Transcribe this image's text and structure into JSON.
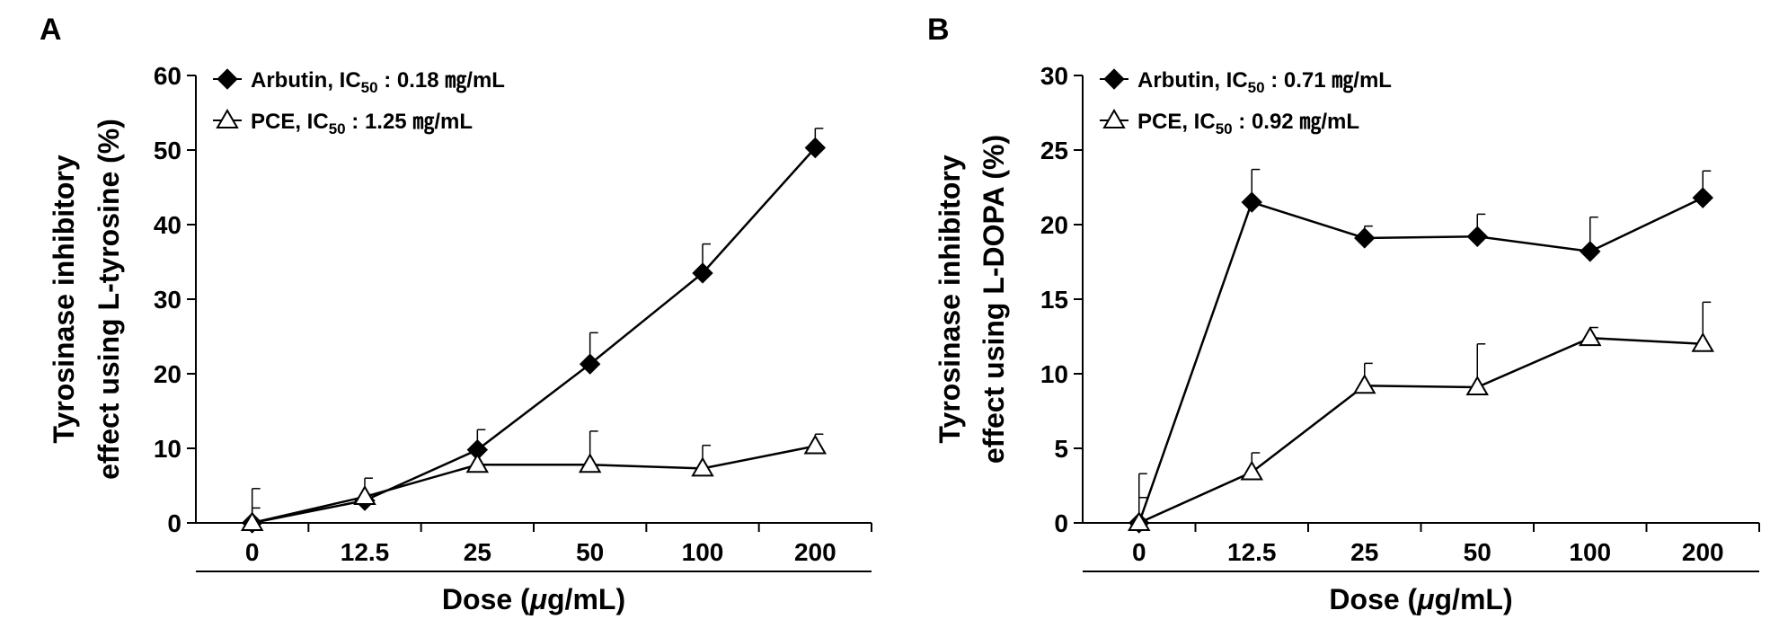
{
  "colors": {
    "ink": "#000000",
    "background": "#ffffff",
    "open_marker_fill": "#ffffff"
  },
  "icons": {
    "arbutin_marker": "filled-diamond",
    "pce_marker": "open-triangle"
  },
  "chart_data": [
    {
      "panel_label": "A",
      "type": "line",
      "categories": [
        "0",
        "12.5",
        "25",
        "50",
        "100",
        "200"
      ],
      "xlabel": {
        "prefix": "Dose (",
        "mu": "μ",
        "suffix": "g/mL)"
      },
      "ylabel_line1": "Tyrosinase inhibitory",
      "ylabel_line2": "effect using L-tyrosine (%)",
      "ylim": [
        0,
        60
      ],
      "yticks": [
        0,
        10,
        20,
        30,
        40,
        50,
        60
      ],
      "legend_position": "top-left",
      "series": [
        {
          "name": "Arbutin",
          "legend": {
            "prefix": "Arbutin, IC",
            "sub": "50",
            "suffix": " : 0.18 ㎎/mL"
          },
          "marker": "filled-diamond",
          "values": [
            0,
            3,
            9.8,
            21.3,
            33.5,
            50.3
          ],
          "error": [
            2,
            0.8,
            2.7,
            4.2,
            3.9,
            2.6
          ]
        },
        {
          "name": "PCE",
          "legend": {
            "prefix": "PCE, IC",
            "sub": "50",
            "suffix": " : 1.25 ㎎/mL"
          },
          "marker": "open-triangle",
          "values": [
            0,
            3.5,
            7.8,
            7.8,
            7.3,
            10.3
          ],
          "error": [
            4.6,
            2.5,
            0,
            4.5,
            3.1,
            1.6
          ]
        }
      ]
    },
    {
      "panel_label": "B",
      "type": "line",
      "categories": [
        "0",
        "12.5",
        "25",
        "50",
        "100",
        "200"
      ],
      "xlabel": {
        "prefix": "Dose (",
        "mu": "μ",
        "suffix": "g/mL)"
      },
      "ylabel_line1": "Tyrosinase inhibitory",
      "ylabel_line2": "effect using L-DOPA (%)",
      "ylim": [
        0,
        30
      ],
      "yticks": [
        0,
        5,
        10,
        15,
        20,
        25,
        30
      ],
      "legend_position": "top-left",
      "series": [
        {
          "name": "Arbutin",
          "legend": {
            "prefix": "Arbutin, IC",
            "sub": "50",
            "suffix": " : 0.71 ㎎/mL"
          },
          "marker": "filled-diamond",
          "values": [
            0,
            21.5,
            19.1,
            19.2,
            18.2,
            21.8
          ],
          "error": [
            1.7,
            2.2,
            0.8,
            1.5,
            2.3,
            1.8
          ]
        },
        {
          "name": "PCE",
          "legend": {
            "prefix": "PCE, IC",
            "sub": "50",
            "suffix": " : 0.92 ㎎/mL"
          },
          "marker": "open-triangle",
          "values": [
            0,
            3.4,
            9.2,
            9.1,
            12.4,
            12.0
          ],
          "error": [
            3.3,
            1.3,
            1.5,
            2.9,
            0.7,
            2.8
          ]
        }
      ]
    }
  ]
}
